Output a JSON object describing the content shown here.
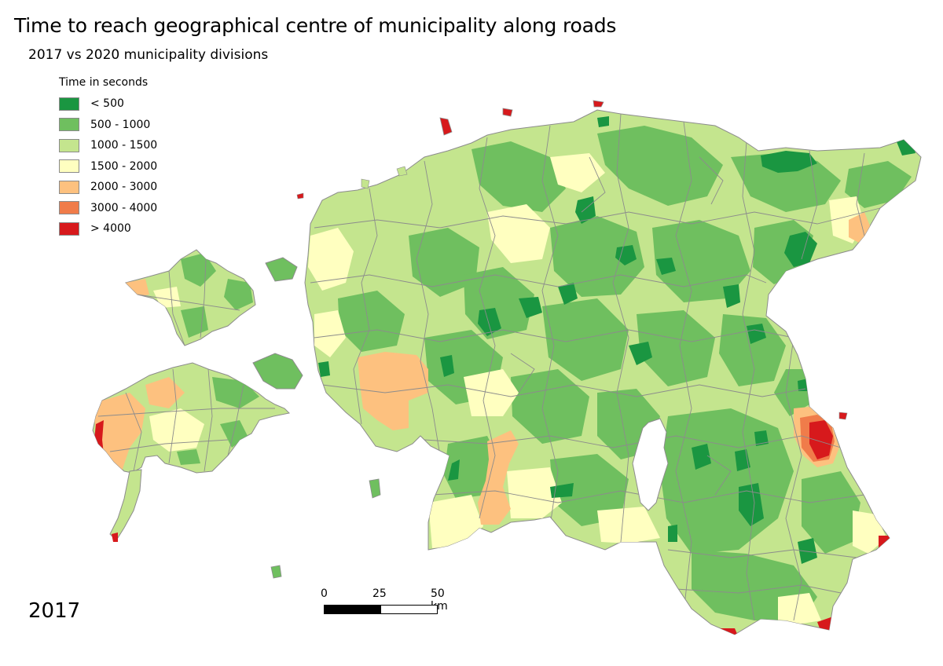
{
  "map": {
    "title": "Time to reach geographical centre of municipality along roads",
    "subtitle": "2017 vs 2020 municipality divisions",
    "year_label": "2017"
  },
  "legend": {
    "title": "Time in seconds",
    "items": [
      {
        "label": "< 500",
        "color": "#1a9641"
      },
      {
        "label": "500 - 1000",
        "color": "#6fbf5f"
      },
      {
        "label": "1000 - 1500",
        "color": "#c4e58e"
      },
      {
        "label": "1500 - 2000",
        "color": "#ffffc0"
      },
      {
        "label": "2000 - 3000",
        "color": "#fdc17f"
      },
      {
        "label": "3000 - 4000",
        "color": "#f07c4a"
      },
      {
        "label": "> 4000",
        "color": "#d7191c"
      }
    ]
  },
  "scale": {
    "labels": [
      "0",
      "25",
      "50 km"
    ]
  }
}
